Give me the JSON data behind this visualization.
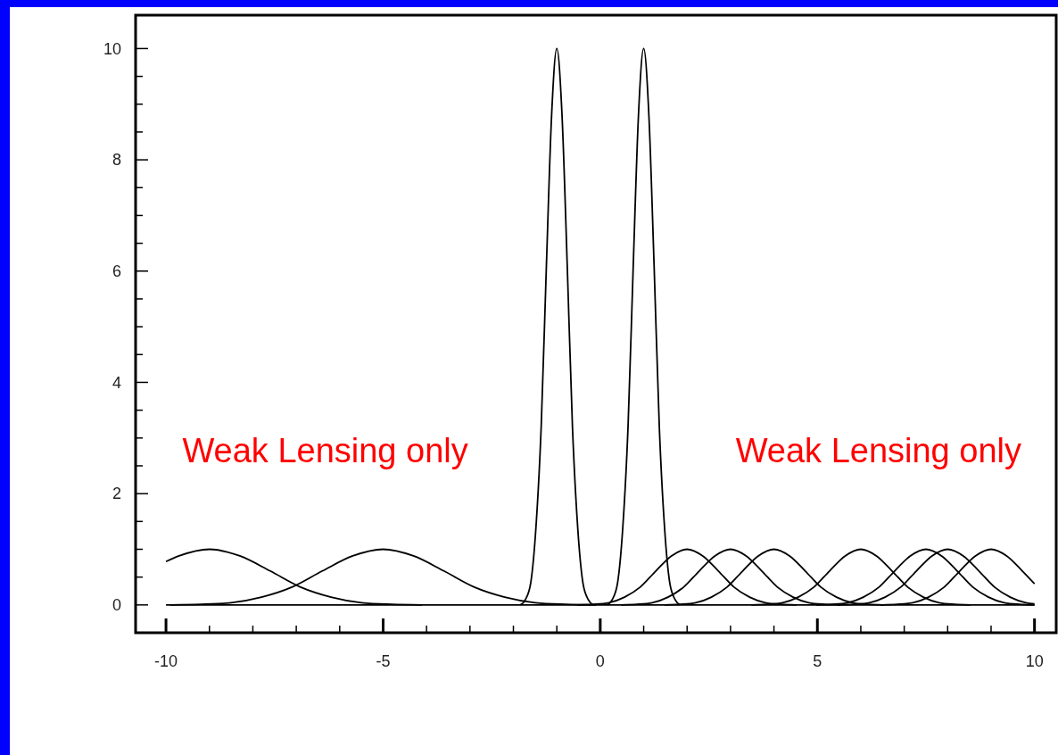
{
  "chart_data": {
    "type": "line",
    "xlim": [
      -10.7,
      10.5
    ],
    "ylim": [
      -0.5,
      10.6
    ],
    "xticks": [
      -10,
      {
        "value": -9,
        "label": null
      },
      {
        "value": -8,
        "label": null
      },
      {
        "value": -7,
        "label": null
      },
      {
        "value": -6,
        "label": null
      },
      -5,
      {
        "value": -4,
        "label": null
      },
      {
        "value": -3,
        "label": null
      },
      {
        "value": -2,
        "label": null
      },
      {
        "value": -1,
        "label": null
      },
      0,
      {
        "value": 1,
        "label": null
      },
      {
        "value": 2,
        "label": null
      },
      {
        "value": 3,
        "label": null
      },
      {
        "value": 4,
        "label": null
      },
      5,
      {
        "value": 6,
        "label": null
      },
      {
        "value": 7,
        "label": null
      },
      {
        "value": 8,
        "label": null
      },
      {
        "value": 9,
        "label": null
      },
      10
    ],
    "yticks": [
      0,
      {
        "value": 0.5,
        "label": null
      },
      {
        "value": 1,
        "label": null
      },
      {
        "value": 1.5,
        "label": null
      },
      2,
      {
        "value": 2.5,
        "label": null
      },
      {
        "value": 3,
        "label": null
      },
      {
        "value": 3.5,
        "label": null
      },
      4,
      {
        "value": 4.5,
        "label": null
      },
      {
        "value": 5,
        "label": null
      },
      {
        "value": 5.5,
        "label": null
      },
      6,
      {
        "value": 6.5,
        "label": null
      },
      {
        "value": 7,
        "label": null
      },
      {
        "value": 7.5,
        "label": null
      },
      8,
      {
        "value": 8.5,
        "label": null
      },
      {
        "value": 9,
        "label": null
      },
      {
        "value": 9.5,
        "label": null
      },
      10
    ],
    "annotations": [
      "Weak Lensing only",
      "Weak Lensing only"
    ],
    "ref_lines": [
      {
        "axis": "y",
        "value": 0,
        "color": "#000000"
      }
    ],
    "series": [
      {
        "color": "#000000",
        "x": [
          -10,
          -9.7,
          -9,
          -8.3,
          -7.6,
          -6.9,
          -6.2,
          -5.5,
          -4.8,
          -4.1
        ],
        "values": [
          0.78,
          0.88,
          1,
          0.88,
          0.61,
          0.32,
          0.14,
          0.04,
          0.01,
          0
        ]
      },
      {
        "color": "#000000",
        "x": [
          -9.9,
          -9.2,
          -8.5,
          -7.8,
          -7.1,
          -6.4,
          -5.7,
          -5,
          -4.3,
          -3.6,
          -2.9,
          -2.2,
          -1.5,
          -0.8,
          -0.1
        ],
        "values": [
          0,
          0.01,
          0.04,
          0.14,
          0.32,
          0.61,
          0.88,
          1,
          0.88,
          0.61,
          0.32,
          0.14,
          0.04,
          0.01,
          0
        ]
      },
      {
        "color": "#000000",
        "x": [
          -1.84,
          -1.72,
          -1.6,
          -1.48,
          -1.36,
          -1.24,
          -1.12,
          -1,
          -0.88,
          -0.76,
          -0.64,
          -0.52,
          -0.4,
          -0.28,
          -0.16
        ],
        "values": [
          0,
          0.1,
          0.4,
          1.4,
          3.2,
          6.1,
          8.8,
          10,
          8.8,
          6.1,
          3.2,
          1.4,
          0.4,
          0.1,
          0
        ]
      },
      {
        "color": "#000000",
        "x": [
          0.16,
          0.28,
          0.4,
          0.52,
          0.64,
          0.76,
          0.88,
          1,
          1.12,
          1.24,
          1.36,
          1.48,
          1.6,
          1.72,
          1.84
        ],
        "values": [
          0,
          0.1,
          0.4,
          1.4,
          3.2,
          6.1,
          8.8,
          10,
          8.8,
          6.1,
          3.2,
          1.4,
          0.4,
          0.1,
          0
        ]
      },
      {
        "color": "#000000",
        "x": [
          -0.52,
          -0.16,
          0.2,
          0.56,
          0.92,
          1.28,
          1.64,
          2,
          2.36,
          2.72,
          3.08,
          3.44,
          3.8,
          4.16,
          4.52
        ],
        "values": [
          0,
          0.01,
          0.04,
          0.14,
          0.32,
          0.61,
          0.88,
          1,
          0.88,
          0.61,
          0.32,
          0.14,
          0.04,
          0.01,
          0
        ]
      },
      {
        "color": "#000000",
        "x": [
          0.48,
          0.84,
          1.2,
          1.56,
          1.92,
          2.28,
          2.64,
          3,
          3.36,
          3.72,
          4.08,
          4.44,
          4.8,
          5.16,
          5.52
        ],
        "values": [
          0,
          0.01,
          0.04,
          0.14,
          0.32,
          0.61,
          0.88,
          1,
          0.88,
          0.61,
          0.32,
          0.14,
          0.04,
          0.01,
          0
        ]
      },
      {
        "color": "#000000",
        "x": [
          1.48,
          1.84,
          2.2,
          2.56,
          2.92,
          3.28,
          3.64,
          4,
          4.36,
          4.72,
          5.08,
          5.44,
          5.8,
          6.16,
          6.52
        ],
        "values": [
          0,
          0.01,
          0.04,
          0.14,
          0.32,
          0.61,
          0.88,
          1,
          0.88,
          0.61,
          0.32,
          0.14,
          0.04,
          0.01,
          0
        ]
      },
      {
        "color": "#000000",
        "x": [
          3.48,
          3.84,
          4.2,
          4.56,
          4.92,
          5.28,
          5.64,
          6,
          6.36,
          6.72,
          7.08,
          7.44,
          7.8,
          8.16,
          8.52
        ],
        "values": [
          0,
          0.01,
          0.04,
          0.14,
          0.32,
          0.61,
          0.88,
          1,
          0.88,
          0.61,
          0.32,
          0.14,
          0.04,
          0.01,
          0
        ]
      },
      {
        "color": "#000000",
        "x": [
          4.98,
          5.34,
          5.7,
          6.06,
          6.42,
          6.78,
          7.14,
          7.5,
          7.86,
          8.22,
          8.58,
          8.94,
          9.3,
          9.66,
          10
        ],
        "values": [
          0,
          0.01,
          0.04,
          0.14,
          0.32,
          0.61,
          0.88,
          1,
          0.88,
          0.61,
          0.32,
          0.14,
          0.04,
          0.01,
          0
        ]
      },
      {
        "color": "#000000",
        "x": [
          5.48,
          5.84,
          6.2,
          6.56,
          6.92,
          7.28,
          7.64,
          8,
          8.36,
          8.72,
          9.08,
          9.44,
          9.8,
          10
        ],
        "values": [
          0,
          0.01,
          0.04,
          0.14,
          0.32,
          0.61,
          0.88,
          1,
          0.88,
          0.61,
          0.32,
          0.14,
          0.04,
          0.02
        ]
      },
      {
        "color": "#000000",
        "x": [
          6.48,
          6.84,
          7.2,
          7.56,
          7.92,
          8.28,
          8.64,
          9,
          9.36,
          9.72,
          10
        ],
        "values": [
          0,
          0.01,
          0.04,
          0.14,
          0.32,
          0.61,
          0.88,
          1,
          0.88,
          0.61,
          0.38
        ]
      }
    ]
  }
}
